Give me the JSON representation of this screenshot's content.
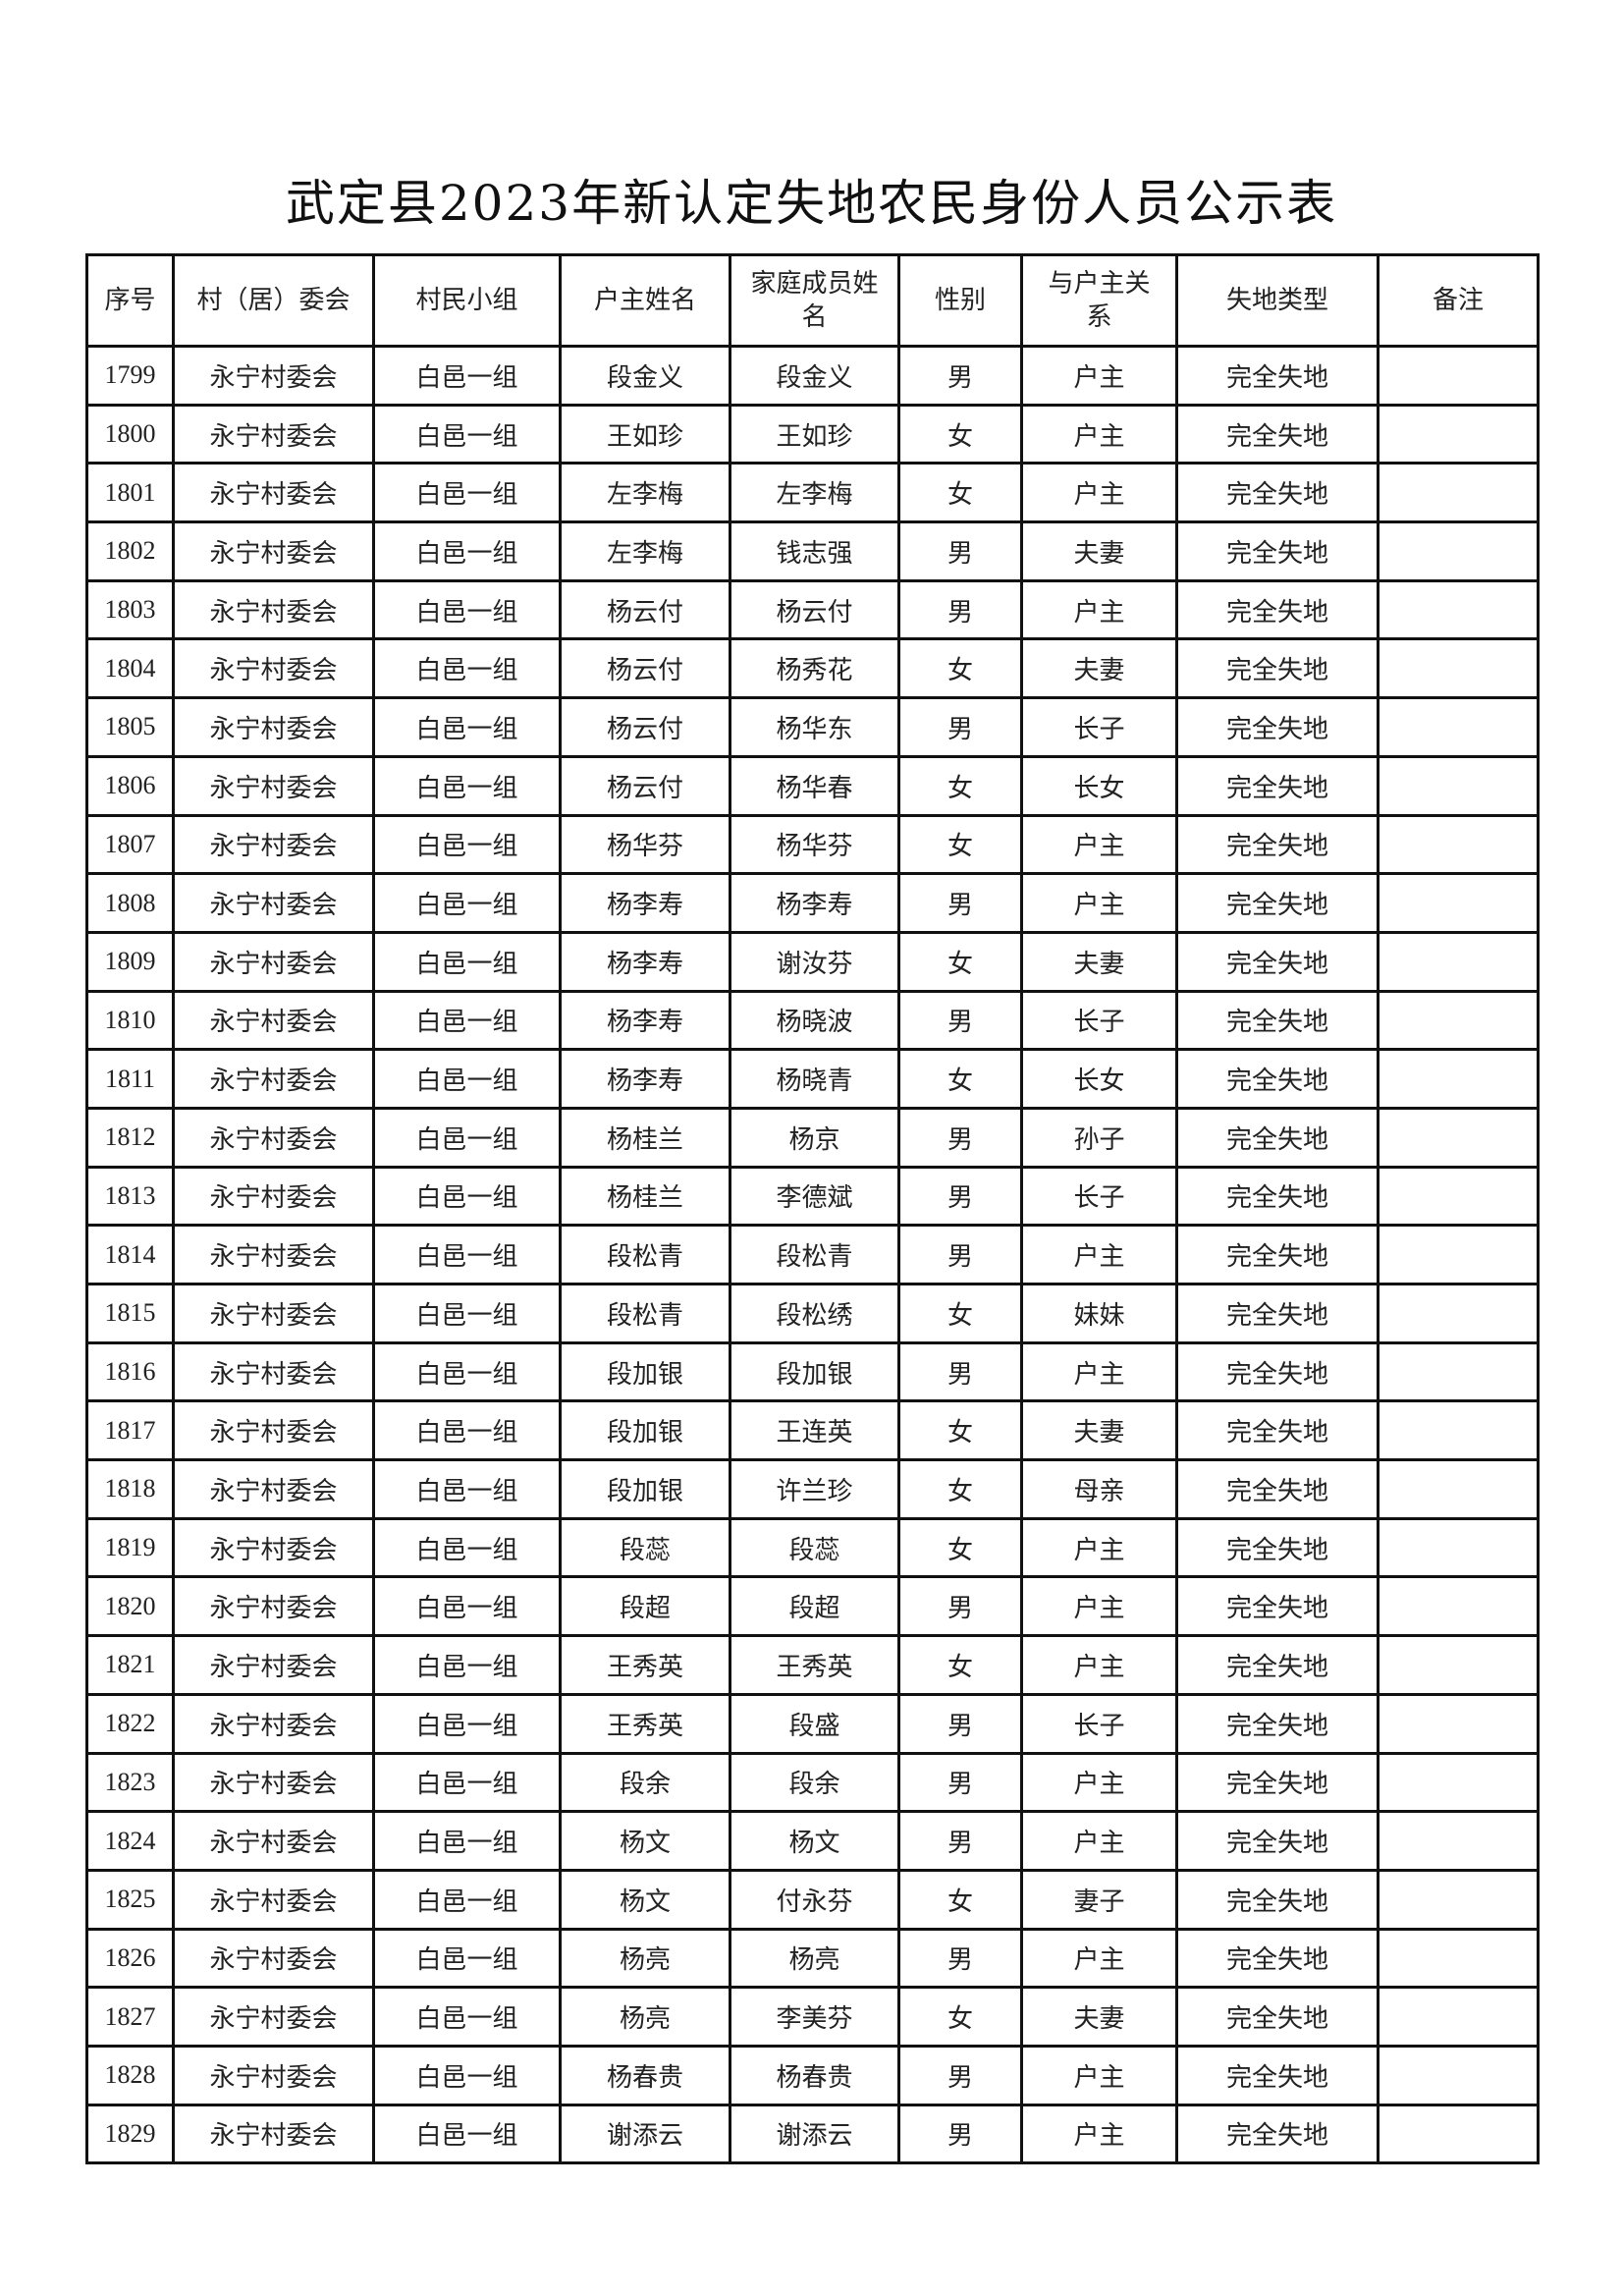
{
  "title": "武定县2023年新认定失地农民身份人员公示表",
  "headers": [
    "序号",
    "村（居）委会",
    "村民小组",
    "户主姓名",
    "家庭成员姓名",
    "性别",
    "与户主关系",
    "失地类型",
    "备注"
  ],
  "rows": [
    [
      "1799",
      "永宁村委会",
      "白邑一组",
      "段金义",
      "段金义",
      "男",
      "户主",
      "完全失地",
      ""
    ],
    [
      "1800",
      "永宁村委会",
      "白邑一组",
      "王如珍",
      "王如珍",
      "女",
      "户主",
      "完全失地",
      ""
    ],
    [
      "1801",
      "永宁村委会",
      "白邑一组",
      "左李梅",
      "左李梅",
      "女",
      "户主",
      "完全失地",
      ""
    ],
    [
      "1802",
      "永宁村委会",
      "白邑一组",
      "左李梅",
      "钱志强",
      "男",
      "夫妻",
      "完全失地",
      ""
    ],
    [
      "1803",
      "永宁村委会",
      "白邑一组",
      "杨云付",
      "杨云付",
      "男",
      "户主",
      "完全失地",
      ""
    ],
    [
      "1804",
      "永宁村委会",
      "白邑一组",
      "杨云付",
      "杨秀花",
      "女",
      "夫妻",
      "完全失地",
      ""
    ],
    [
      "1805",
      "永宁村委会",
      "白邑一组",
      "杨云付",
      "杨华东",
      "男",
      "长子",
      "完全失地",
      ""
    ],
    [
      "1806",
      "永宁村委会",
      "白邑一组",
      "杨云付",
      "杨华春",
      "女",
      "长女",
      "完全失地",
      ""
    ],
    [
      "1807",
      "永宁村委会",
      "白邑一组",
      "杨华芬",
      "杨华芬",
      "女",
      "户主",
      "完全失地",
      ""
    ],
    [
      "1808",
      "永宁村委会",
      "白邑一组",
      "杨李寿",
      "杨李寿",
      "男",
      "户主",
      "完全失地",
      ""
    ],
    [
      "1809",
      "永宁村委会",
      "白邑一组",
      "杨李寿",
      "谢汝芬",
      "女",
      "夫妻",
      "完全失地",
      ""
    ],
    [
      "1810",
      "永宁村委会",
      "白邑一组",
      "杨李寿",
      "杨晓波",
      "男",
      "长子",
      "完全失地",
      ""
    ],
    [
      "1811",
      "永宁村委会",
      "白邑一组",
      "杨李寿",
      "杨晓青",
      "女",
      "长女",
      "完全失地",
      ""
    ],
    [
      "1812",
      "永宁村委会",
      "白邑一组",
      "杨桂兰",
      "杨京",
      "男",
      "孙子",
      "完全失地",
      ""
    ],
    [
      "1813",
      "永宁村委会",
      "白邑一组",
      "杨桂兰",
      "李德斌",
      "男",
      "长子",
      "完全失地",
      ""
    ],
    [
      "1814",
      "永宁村委会",
      "白邑一组",
      "段松青",
      "段松青",
      "男",
      "户主",
      "完全失地",
      ""
    ],
    [
      "1815",
      "永宁村委会",
      "白邑一组",
      "段松青",
      "段松绣",
      "女",
      "妹妹",
      "完全失地",
      ""
    ],
    [
      "1816",
      "永宁村委会",
      "白邑一组",
      "段加银",
      "段加银",
      "男",
      "户主",
      "完全失地",
      ""
    ],
    [
      "1817",
      "永宁村委会",
      "白邑一组",
      "段加银",
      "王连英",
      "女",
      "夫妻",
      "完全失地",
      ""
    ],
    [
      "1818",
      "永宁村委会",
      "白邑一组",
      "段加银",
      "许兰珍",
      "女",
      "母亲",
      "完全失地",
      ""
    ],
    [
      "1819",
      "永宁村委会",
      "白邑一组",
      "段蕊",
      "段蕊",
      "女",
      "户主",
      "完全失地",
      ""
    ],
    [
      "1820",
      "永宁村委会",
      "白邑一组",
      "段超",
      "段超",
      "男",
      "户主",
      "完全失地",
      ""
    ],
    [
      "1821",
      "永宁村委会",
      "白邑一组",
      "王秀英",
      "王秀英",
      "女",
      "户主",
      "完全失地",
      ""
    ],
    [
      "1822",
      "永宁村委会",
      "白邑一组",
      "王秀英",
      "段盛",
      "男",
      "长子",
      "完全失地",
      ""
    ],
    [
      "1823",
      "永宁村委会",
      "白邑一组",
      "段余",
      "段余",
      "男",
      "户主",
      "完全失地",
      ""
    ],
    [
      "1824",
      "永宁村委会",
      "白邑一组",
      "杨文",
      "杨文",
      "男",
      "户主",
      "完全失地",
      ""
    ],
    [
      "1825",
      "永宁村委会",
      "白邑一组",
      "杨文",
      "付永芬",
      "女",
      "妻子",
      "完全失地",
      ""
    ],
    [
      "1826",
      "永宁村委会",
      "白邑一组",
      "杨亮",
      "杨亮",
      "男",
      "户主",
      "完全失地",
      ""
    ],
    [
      "1827",
      "永宁村委会",
      "白邑一组",
      "杨亮",
      "李美芬",
      "女",
      "夫妻",
      "完全失地",
      ""
    ],
    [
      "1828",
      "永宁村委会",
      "白邑一组",
      "杨春贵",
      "杨春贵",
      "男",
      "户主",
      "完全失地",
      ""
    ],
    [
      "1829",
      "永宁村委会",
      "白邑一组",
      "谢添云",
      "谢添云",
      "男",
      "户主",
      "完全失地",
      ""
    ]
  ]
}
